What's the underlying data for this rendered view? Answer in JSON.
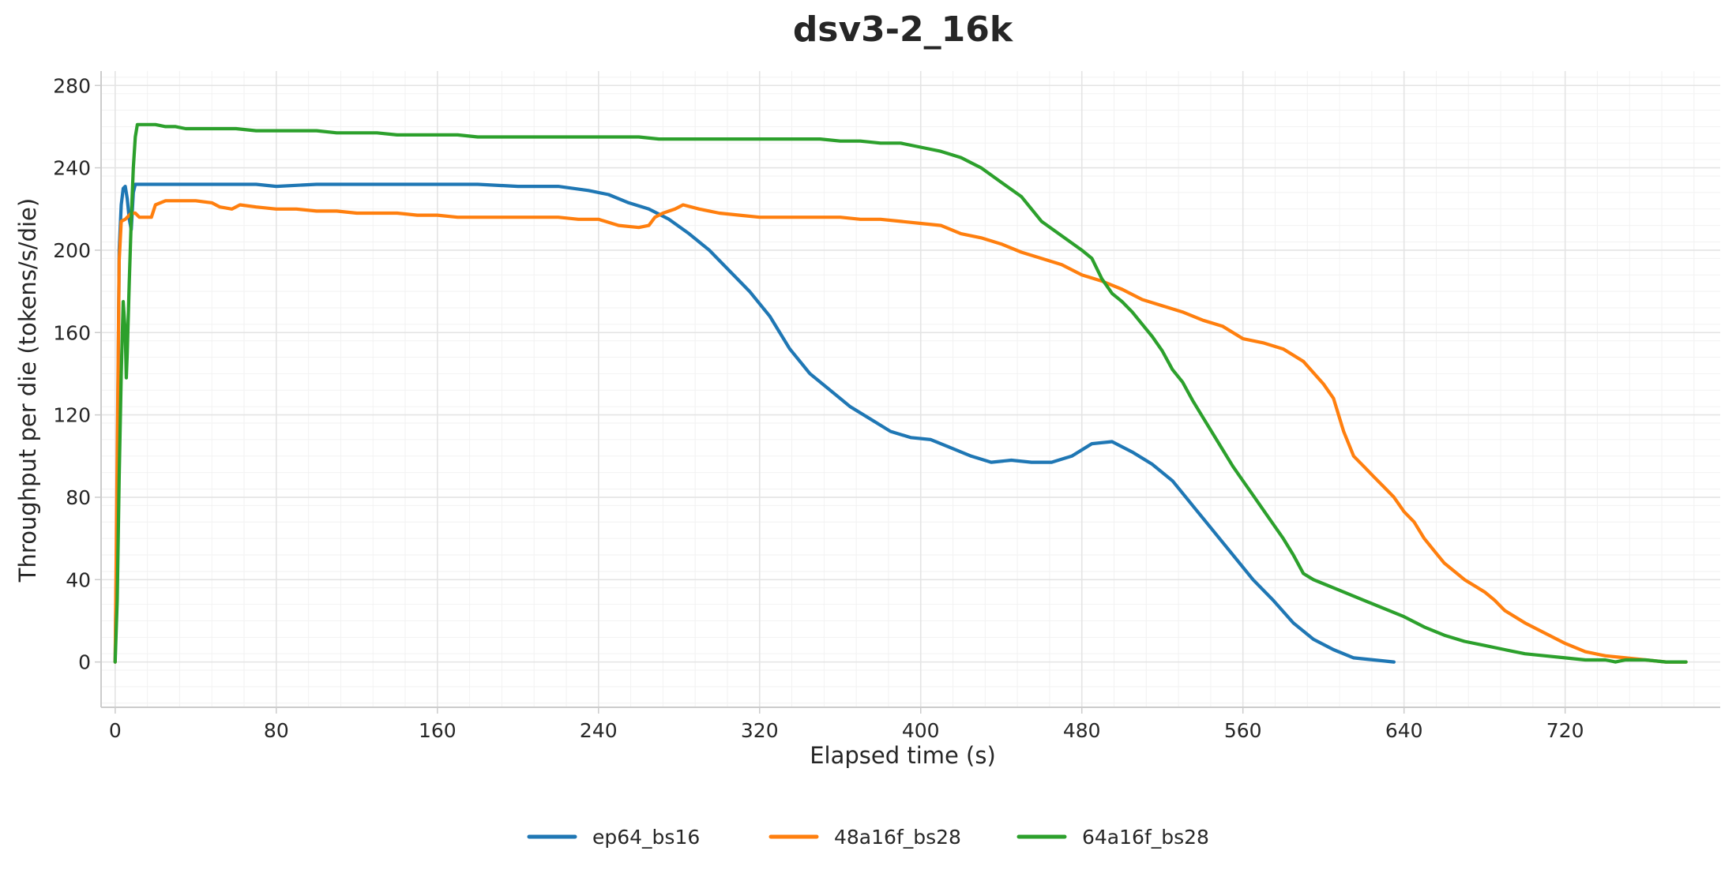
{
  "chart_data": {
    "type": "line",
    "title": "dsv3-2_16k",
    "xlabel": "Elapsed time (s)",
    "ylabel": "Throughput per die (tokens/s/die)",
    "xlim": [
      -7,
      797
    ],
    "ylim": [
      -22,
      287
    ],
    "xticks": [
      0,
      80,
      160,
      240,
      320,
      400,
      480,
      560,
      640,
      720
    ],
    "yticks": [
      0,
      40,
      80,
      120,
      160,
      200,
      240,
      280
    ],
    "grid": true,
    "minor_grid": true,
    "legend_position": "bottom-center",
    "series": [
      {
        "name": "ep64_bs16",
        "color": "#1f77b4",
        "points": [
          [
            0,
            0
          ],
          [
            1,
            80
          ],
          [
            2,
            200
          ],
          [
            3,
            222
          ],
          [
            4,
            230
          ],
          [
            5,
            231
          ],
          [
            6,
            225
          ],
          [
            7,
            215
          ],
          [
            8,
            210
          ],
          [
            9,
            228
          ],
          [
            10,
            232
          ],
          [
            20,
            232
          ],
          [
            30,
            232
          ],
          [
            50,
            232
          ],
          [
            70,
            232
          ],
          [
            80,
            231
          ],
          [
            100,
            232
          ],
          [
            120,
            232
          ],
          [
            150,
            232
          ],
          [
            180,
            232
          ],
          [
            200,
            231
          ],
          [
            220,
            231
          ],
          [
            235,
            229
          ],
          [
            245,
            227
          ],
          [
            255,
            223
          ],
          [
            265,
            220
          ],
          [
            275,
            215
          ],
          [
            285,
            208
          ],
          [
            295,
            200
          ],
          [
            305,
            190
          ],
          [
            315,
            180
          ],
          [
            325,
            168
          ],
          [
            335,
            152
          ],
          [
            345,
            140
          ],
          [
            355,
            132
          ],
          [
            365,
            124
          ],
          [
            375,
            118
          ],
          [
            385,
            112
          ],
          [
            395,
            109
          ],
          [
            405,
            108
          ],
          [
            415,
            104
          ],
          [
            425,
            100
          ],
          [
            435,
            97
          ],
          [
            445,
            98
          ],
          [
            455,
            97
          ],
          [
            465,
            97
          ],
          [
            475,
            100
          ],
          [
            485,
            106
          ],
          [
            495,
            107
          ],
          [
            505,
            102
          ],
          [
            515,
            96
          ],
          [
            525,
            88
          ],
          [
            535,
            76
          ],
          [
            545,
            64
          ],
          [
            555,
            52
          ],
          [
            565,
            40
          ],
          [
            575,
            30
          ],
          [
            585,
            19
          ],
          [
            595,
            11
          ],
          [
            605,
            6
          ],
          [
            615,
            2
          ],
          [
            625,
            1
          ],
          [
            635,
            0
          ]
        ]
      },
      {
        "name": "48a16f_bs28",
        "color": "#ff7f0e",
        "points": [
          [
            0,
            0
          ],
          [
            1,
            100
          ],
          [
            2,
            195
          ],
          [
            3,
            214
          ],
          [
            5,
            215
          ],
          [
            8,
            218
          ],
          [
            10,
            218
          ],
          [
            12,
            216
          ],
          [
            18,
            216
          ],
          [
            20,
            222
          ],
          [
            25,
            224
          ],
          [
            30,
            224
          ],
          [
            40,
            224
          ],
          [
            48,
            223
          ],
          [
            52,
            221
          ],
          [
            58,
            220
          ],
          [
            62,
            222
          ],
          [
            70,
            221
          ],
          [
            80,
            220
          ],
          [
            90,
            220
          ],
          [
            100,
            219
          ],
          [
            110,
            219
          ],
          [
            120,
            218
          ],
          [
            130,
            218
          ],
          [
            140,
            218
          ],
          [
            150,
            217
          ],
          [
            160,
            217
          ],
          [
            170,
            216
          ],
          [
            180,
            216
          ],
          [
            190,
            216
          ],
          [
            200,
            216
          ],
          [
            210,
            216
          ],
          [
            220,
            216
          ],
          [
            230,
            215
          ],
          [
            240,
            215
          ],
          [
            250,
            212
          ],
          [
            260,
            211
          ],
          [
            265,
            212
          ],
          [
            268,
            216
          ],
          [
            272,
            218
          ],
          [
            278,
            220
          ],
          [
            282,
            222
          ],
          [
            290,
            220
          ],
          [
            300,
            218
          ],
          [
            310,
            217
          ],
          [
            320,
            216
          ],
          [
            330,
            216
          ],
          [
            340,
            216
          ],
          [
            350,
            216
          ],
          [
            360,
            216
          ],
          [
            370,
            215
          ],
          [
            380,
            215
          ],
          [
            390,
            214
          ],
          [
            400,
            213
          ],
          [
            410,
            212
          ],
          [
            420,
            208
          ],
          [
            430,
            206
          ],
          [
            440,
            203
          ],
          [
            450,
            199
          ],
          [
            460,
            196
          ],
          [
            470,
            193
          ],
          [
            480,
            188
          ],
          [
            490,
            185
          ],
          [
            500,
            181
          ],
          [
            510,
            176
          ],
          [
            520,
            173
          ],
          [
            530,
            170
          ],
          [
            540,
            166
          ],
          [
            550,
            163
          ],
          [
            560,
            157
          ],
          [
            570,
            155
          ],
          [
            580,
            152
          ],
          [
            590,
            146
          ],
          [
            600,
            135
          ],
          [
            605,
            128
          ],
          [
            610,
            112
          ],
          [
            615,
            100
          ],
          [
            620,
            95
          ],
          [
            625,
            90
          ],
          [
            630,
            85
          ],
          [
            635,
            80
          ],
          [
            640,
            73
          ],
          [
            645,
            68
          ],
          [
            650,
            60
          ],
          [
            655,
            54
          ],
          [
            660,
            48
          ],
          [
            665,
            44
          ],
          [
            670,
            40
          ],
          [
            675,
            37
          ],
          [
            680,
            34
          ],
          [
            685,
            30
          ],
          [
            690,
            25
          ],
          [
            700,
            19
          ],
          [
            710,
            14
          ],
          [
            720,
            9
          ],
          [
            730,
            5
          ],
          [
            740,
            3
          ],
          [
            750,
            2
          ],
          [
            760,
            1
          ],
          [
            770,
            0
          ],
          [
            780,
            0
          ]
        ]
      },
      {
        "name": "64a16f_bs28",
        "color": "#2ca02c",
        "points": [
          [
            0,
            0
          ],
          [
            1,
            30
          ],
          [
            2,
            90
          ],
          [
            3,
            140
          ],
          [
            4,
            175
          ],
          [
            5,
            160
          ],
          [
            5.5,
            138
          ],
          [
            6,
            150
          ],
          [
            7,
            185
          ],
          [
            8,
            215
          ],
          [
            9,
            240
          ],
          [
            10,
            255
          ],
          [
            11,
            261
          ],
          [
            15,
            261
          ],
          [
            20,
            261
          ],
          [
            25,
            260
          ],
          [
            30,
            260
          ],
          [
            35,
            259
          ],
          [
            40,
            259
          ],
          [
            50,
            259
          ],
          [
            60,
            259
          ],
          [
            70,
            258
          ],
          [
            80,
            258
          ],
          [
            90,
            258
          ],
          [
            100,
            258
          ],
          [
            110,
            257
          ],
          [
            120,
            257
          ],
          [
            130,
            257
          ],
          [
            140,
            256
          ],
          [
            150,
            256
          ],
          [
            160,
            256
          ],
          [
            170,
            256
          ],
          [
            180,
            255
          ],
          [
            190,
            255
          ],
          [
            200,
            255
          ],
          [
            210,
            255
          ],
          [
            220,
            255
          ],
          [
            230,
            255
          ],
          [
            240,
            255
          ],
          [
            250,
            255
          ],
          [
            260,
            255
          ],
          [
            270,
            254
          ],
          [
            280,
            254
          ],
          [
            290,
            254
          ],
          [
            300,
            254
          ],
          [
            310,
            254
          ],
          [
            320,
            254
          ],
          [
            330,
            254
          ],
          [
            340,
            254
          ],
          [
            350,
            254
          ],
          [
            360,
            253
          ],
          [
            370,
            253
          ],
          [
            380,
            252
          ],
          [
            390,
            252
          ],
          [
            400,
            250
          ],
          [
            410,
            248
          ],
          [
            420,
            245
          ],
          [
            430,
            240
          ],
          [
            440,
            233
          ],
          [
            450,
            226
          ],
          [
            455,
            220
          ],
          [
            460,
            214
          ],
          [
            470,
            207
          ],
          [
            480,
            200
          ],
          [
            485,
            196
          ],
          [
            490,
            186
          ],
          [
            495,
            179
          ],
          [
            500,
            175
          ],
          [
            505,
            170
          ],
          [
            510,
            164
          ],
          [
            515,
            158
          ],
          [
            520,
            151
          ],
          [
            525,
            142
          ],
          [
            530,
            136
          ],
          [
            535,
            127
          ],
          [
            540,
            119
          ],
          [
            545,
            111
          ],
          [
            550,
            103
          ],
          [
            555,
            95
          ],
          [
            560,
            88
          ],
          [
            565,
            81
          ],
          [
            570,
            74
          ],
          [
            575,
            67
          ],
          [
            580,
            60
          ],
          [
            585,
            52
          ],
          [
            590,
            43
          ],
          [
            595,
            40
          ],
          [
            600,
            38
          ],
          [
            605,
            36
          ],
          [
            610,
            34
          ],
          [
            620,
            30
          ],
          [
            630,
            26
          ],
          [
            640,
            22
          ],
          [
            650,
            17
          ],
          [
            660,
            13
          ],
          [
            670,
            10
          ],
          [
            680,
            8
          ],
          [
            690,
            6
          ],
          [
            700,
            4
          ],
          [
            710,
            3
          ],
          [
            720,
            2
          ],
          [
            730,
            1
          ],
          [
            740,
            1
          ],
          [
            745,
            0
          ],
          [
            750,
            1
          ],
          [
            760,
            1
          ],
          [
            770,
            0
          ],
          [
            780,
            0
          ]
        ]
      }
    ]
  }
}
